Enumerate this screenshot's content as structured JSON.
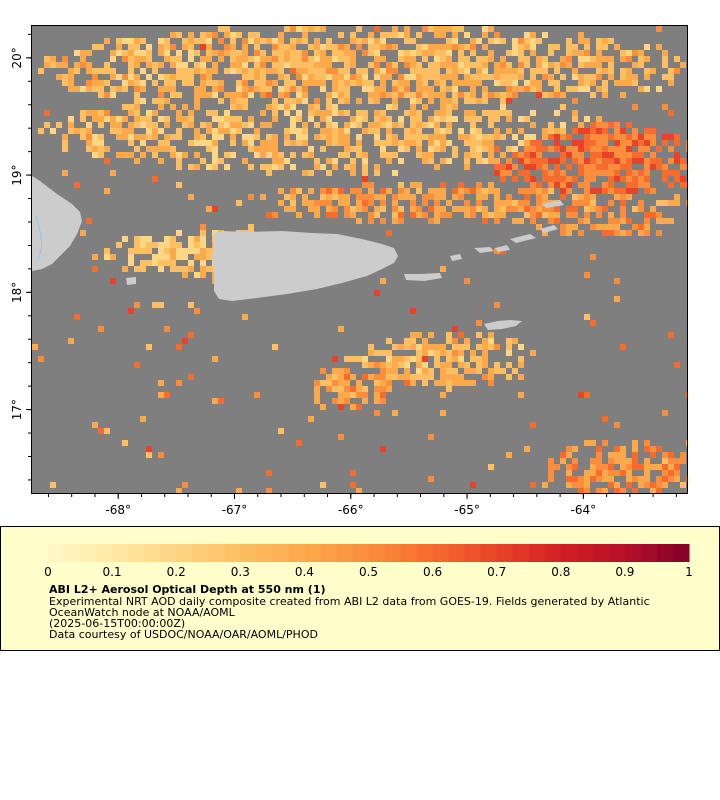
{
  "map": {
    "lon_ticks": [
      "-68°",
      "-67°",
      "-66°",
      "-65°",
      "-64°"
    ],
    "lon_values": [
      -68,
      -67,
      -66,
      -65,
      -64
    ],
    "lat_ticks": [
      "17°",
      "18°",
      "19°",
      "20°"
    ],
    "lat_values": [
      17,
      18,
      19,
      20
    ],
    "extent": {
      "lon_min": -68.75,
      "lon_max": -63.1,
      "lat_min": 16.28,
      "lat_max": 20.28
    },
    "colors": {
      "no_data": "#7f7f7f",
      "land": "#cccccc",
      "water_line": "#99c4e6",
      "border": "#000000"
    },
    "aod_palette": [
      "#fff8c8",
      "#fee9a4",
      "#fed684",
      "#fdbf62",
      "#fca94c",
      "#fb8e3c",
      "#f66b2e",
      "#e8432a",
      "#d31f24",
      "#b5102a",
      "#800026"
    ]
  },
  "legend": {
    "title": "ABI L2+ Aerosol Optical Depth at 550 nm (1)",
    "line1": "Experimental NRT AOD daily composite created from ABI L2 data from GOES-19. Fields generated by Atlantic",
    "line2": "OceanWatch node at NOAA/AOML",
    "line3": "(2025-06-15T00:00:00Z)",
    "line4": "Data courtesy of USDOC/NOAA/OAR/AOML/PHOD",
    "scale_labels": [
      "0",
      "0.1",
      "0.2",
      "0.3",
      "0.4",
      "0.5",
      "0.6",
      "0.7",
      "0.8",
      "0.9",
      "1"
    ],
    "scale_values": [
      0,
      0.1,
      0.2,
      0.3,
      0.4,
      0.5,
      0.6,
      0.7,
      0.8,
      0.9,
      1
    ],
    "scale_min": 0,
    "scale_max": 1
  }
}
